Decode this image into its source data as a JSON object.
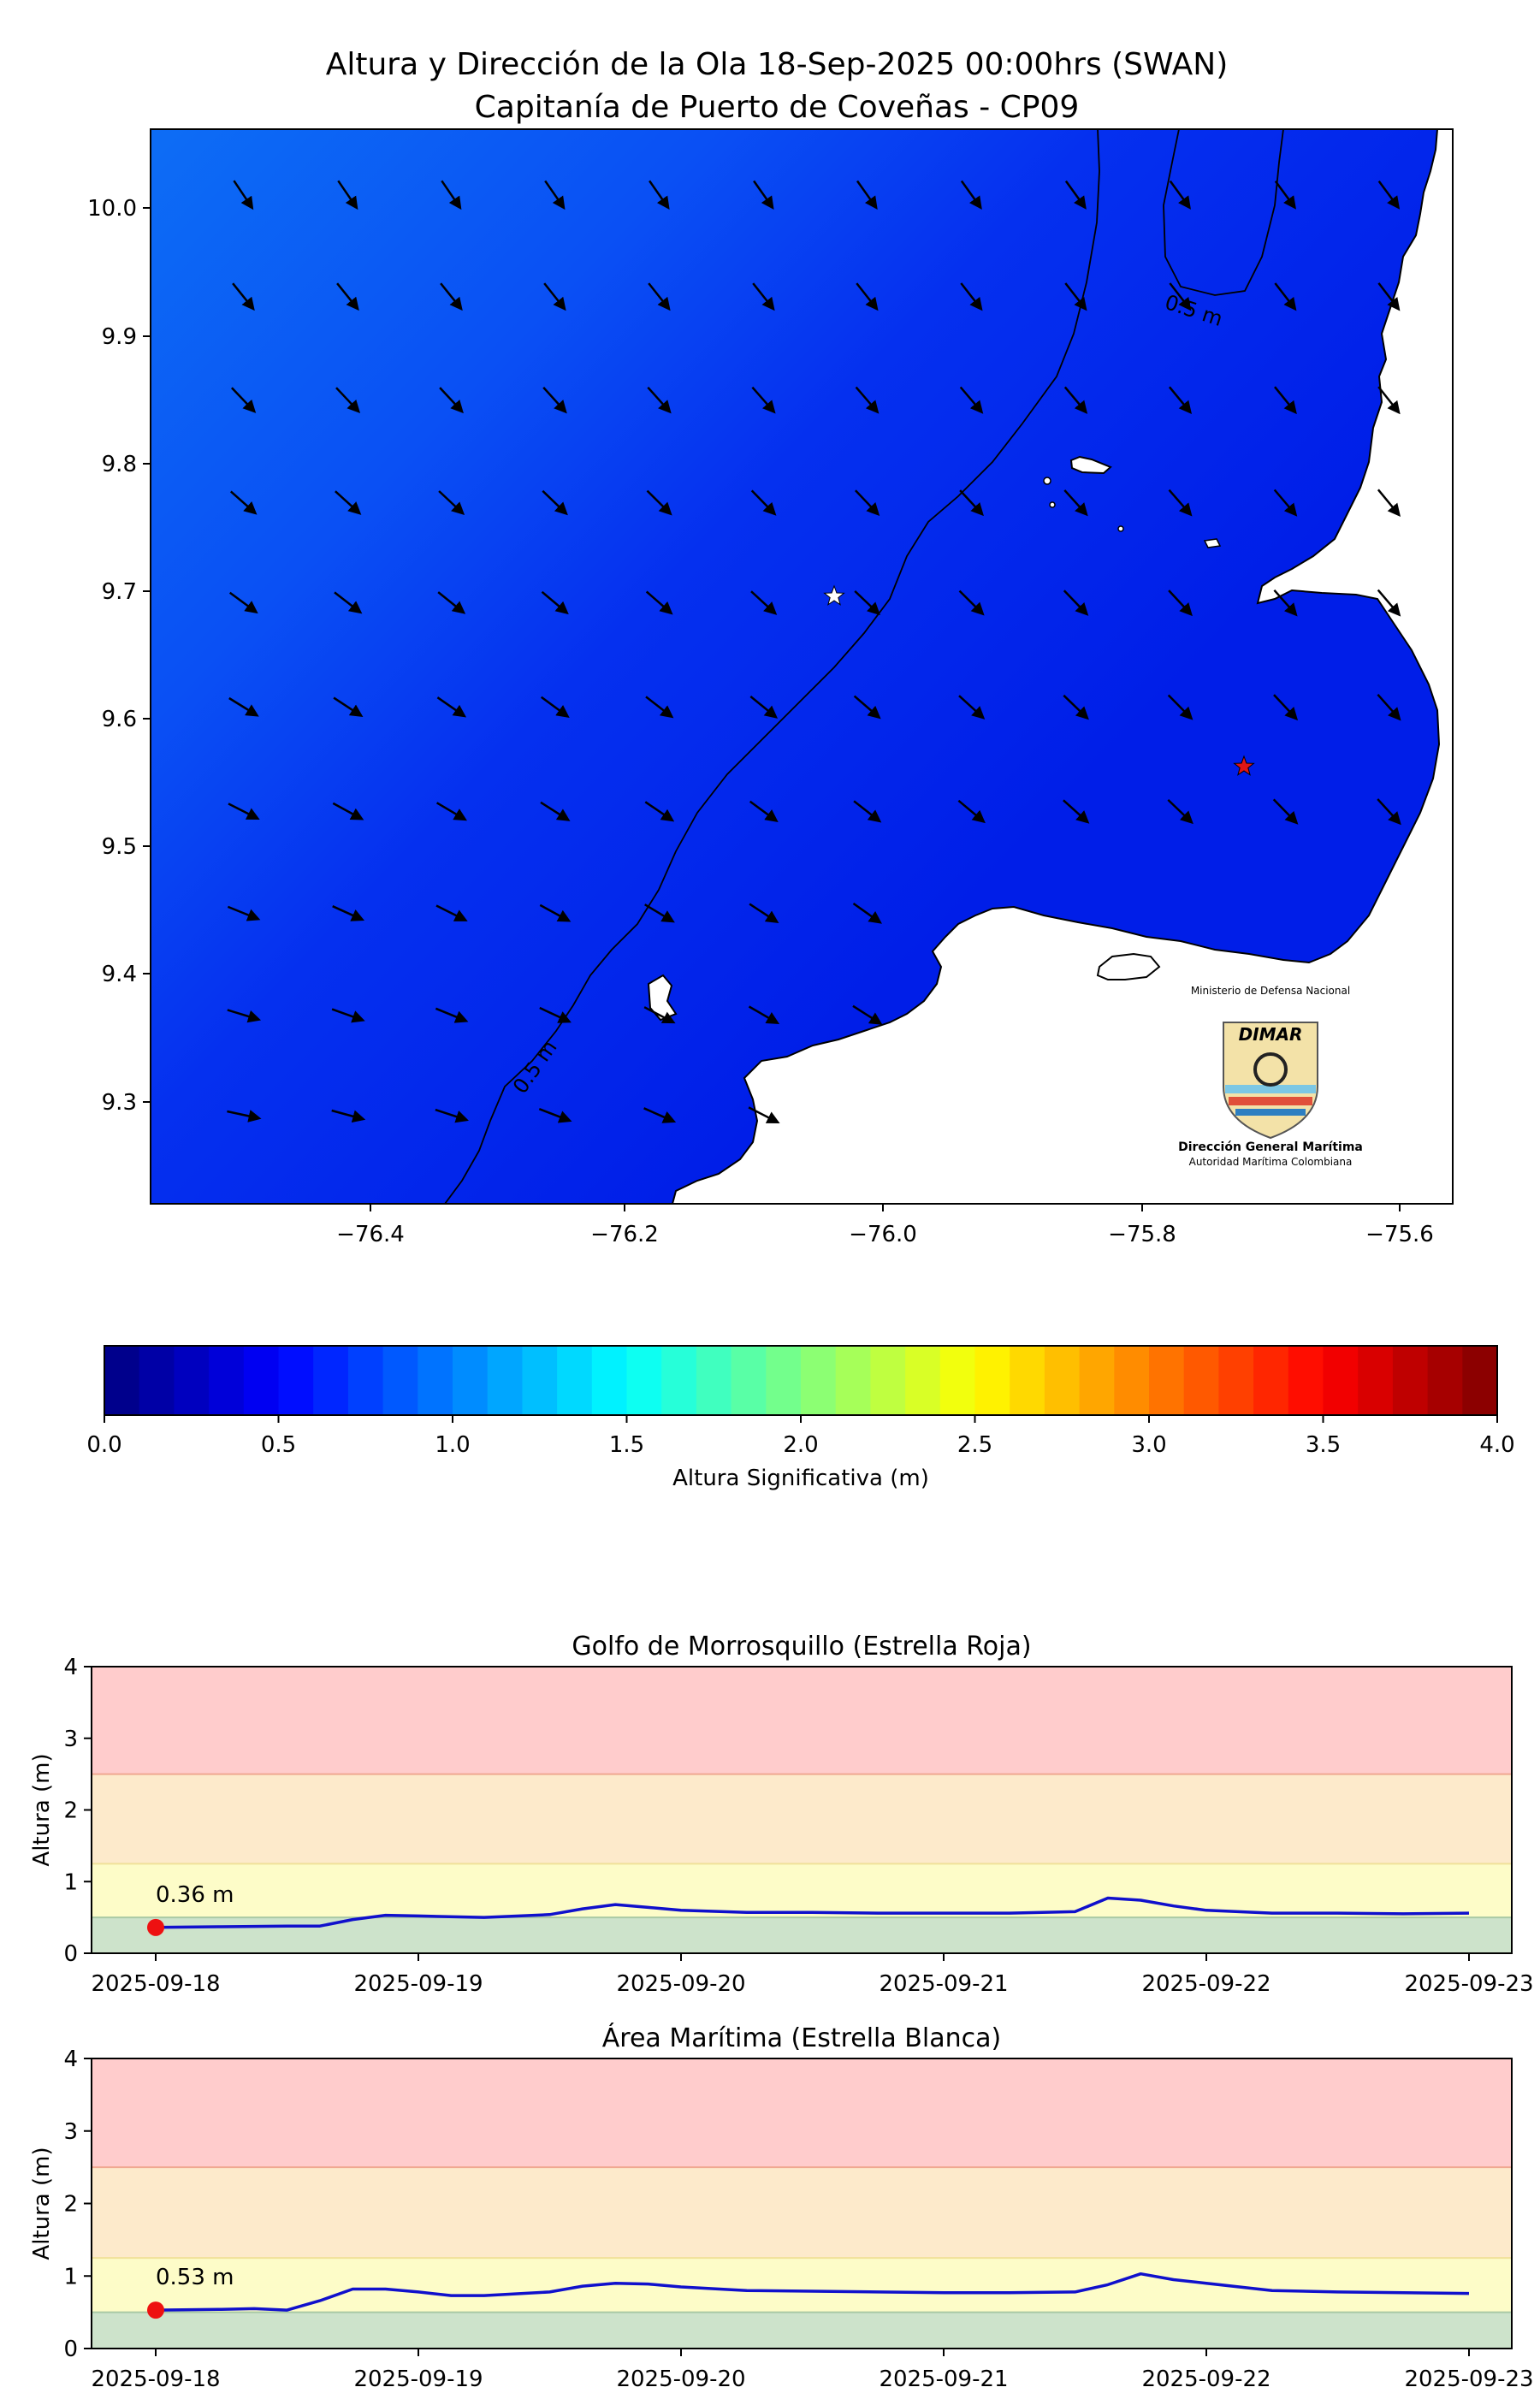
{
  "map": {
    "title_line1": "Altura y Dirección de la Ola 18-Sep-2025 00:00hrs (SWAN)",
    "title_line2": "Capitanía de Puerto de Coveñas - CP09",
    "x_ticks": [
      "−76.4",
      "−76.2",
      "−76.0",
      "−75.8",
      "−75.6"
    ],
    "y_ticks": [
      "10.0",
      "9.9",
      "9.8",
      "9.7",
      "9.6",
      "9.5",
      "9.4",
      "9.3"
    ],
    "contour_label": "0.5 m",
    "logo_header": "Ministerio de Defensa Nacional",
    "logo_text": "DIMAR",
    "logo_caption1": "Dirección General Marítima",
    "logo_caption2": "Autoridad Marítima Colombiana",
    "colors": {
      "sea_offshore": "#0a5ef2",
      "sea_coastal": "#0020ee",
      "land": "#ffffff",
      "star_red": "#e01515",
      "star_white": "#ffffff"
    }
  },
  "colorbar": {
    "ticks": [
      "0.0",
      "0.5",
      "1.0",
      "1.5",
      "2.0",
      "2.5",
      "3.0",
      "3.5",
      "4.0"
    ],
    "label": "Altura Significativa (m)",
    "colormap": "jet",
    "range": [
      0,
      4
    ]
  },
  "chart_data": [
    {
      "type": "line",
      "title": "Golfo de Morrosquillo (Estrella Roja)",
      "ylabel": "Altura (m)",
      "ylim": [
        0,
        4
      ],
      "y_ticks": [
        "0",
        "1",
        "2",
        "3",
        "4"
      ],
      "x_ticks": [
        "2025-09-18",
        "2025-09-19",
        "2025-09-20",
        "2025-09-21",
        "2025-09-22",
        "2025-09-23"
      ],
      "x_days": [
        0,
        0.25,
        0.5,
        0.625,
        0.75,
        0.875,
        1.0,
        1.25,
        1.5,
        1.625,
        1.75,
        1.875,
        2.0,
        2.25,
        2.5,
        2.75,
        3.0,
        3.25,
        3.5,
        3.625,
        3.75,
        3.875,
        4.0,
        4.25,
        4.5,
        4.75,
        5.0
      ],
      "values": [
        0.36,
        0.37,
        0.38,
        0.38,
        0.47,
        0.53,
        0.52,
        0.5,
        0.54,
        0.62,
        0.68,
        0.64,
        0.6,
        0.57,
        0.57,
        0.56,
        0.56,
        0.56,
        0.58,
        0.77,
        0.74,
        0.66,
        0.6,
        0.56,
        0.56,
        0.55,
        0.56
      ],
      "current_label": "0.36 m",
      "bands": [
        {
          "from": 0,
          "to": 0.5,
          "color": "#cde3cb"
        },
        {
          "from": 0.5,
          "to": 1.25,
          "color": "#fdfcc8"
        },
        {
          "from": 1.25,
          "to": 2.5,
          "color": "#fdeacb"
        },
        {
          "from": 2.5,
          "to": 4,
          "color": "#ffcccc"
        }
      ],
      "line_color": "#1010cc",
      "marker_color": "#ee1111"
    },
    {
      "type": "line",
      "title": "Área Marítima (Estrella Blanca)",
      "ylabel": "Altura (m)",
      "ylim": [
        0,
        4
      ],
      "y_ticks": [
        "0",
        "1",
        "2",
        "3",
        "4"
      ],
      "x_ticks": [
        "2025-09-18",
        "2025-09-19",
        "2025-09-20",
        "2025-09-21",
        "2025-09-22",
        "2025-09-23"
      ],
      "x_days": [
        0,
        0.25,
        0.375,
        0.5,
        0.625,
        0.75,
        0.875,
        1.0,
        1.125,
        1.25,
        1.5,
        1.625,
        1.75,
        1.875,
        2.0,
        2.25,
        2.5,
        2.75,
        3.0,
        3.25,
        3.5,
        3.625,
        3.75,
        3.875,
        4.0,
        4.25,
        4.5,
        4.75,
        5.0
      ],
      "values": [
        0.53,
        0.54,
        0.55,
        0.53,
        0.66,
        0.82,
        0.82,
        0.78,
        0.73,
        0.73,
        0.78,
        0.86,
        0.9,
        0.89,
        0.85,
        0.8,
        0.79,
        0.78,
        0.77,
        0.77,
        0.78,
        0.88,
        1.03,
        0.95,
        0.9,
        0.8,
        0.78,
        0.77,
        0.76
      ],
      "current_label": "0.53 m",
      "bands": [
        {
          "from": 0,
          "to": 0.5,
          "color": "#cde3cb"
        },
        {
          "from": 0.5,
          "to": 1.25,
          "color": "#fdfcc8"
        },
        {
          "from": 1.25,
          "to": 2.5,
          "color": "#fdeacb"
        },
        {
          "from": 2.5,
          "to": 4,
          "color": "#ffcccc"
        }
      ],
      "line_color": "#1010cc",
      "marker_color": "#ee1111"
    }
  ]
}
